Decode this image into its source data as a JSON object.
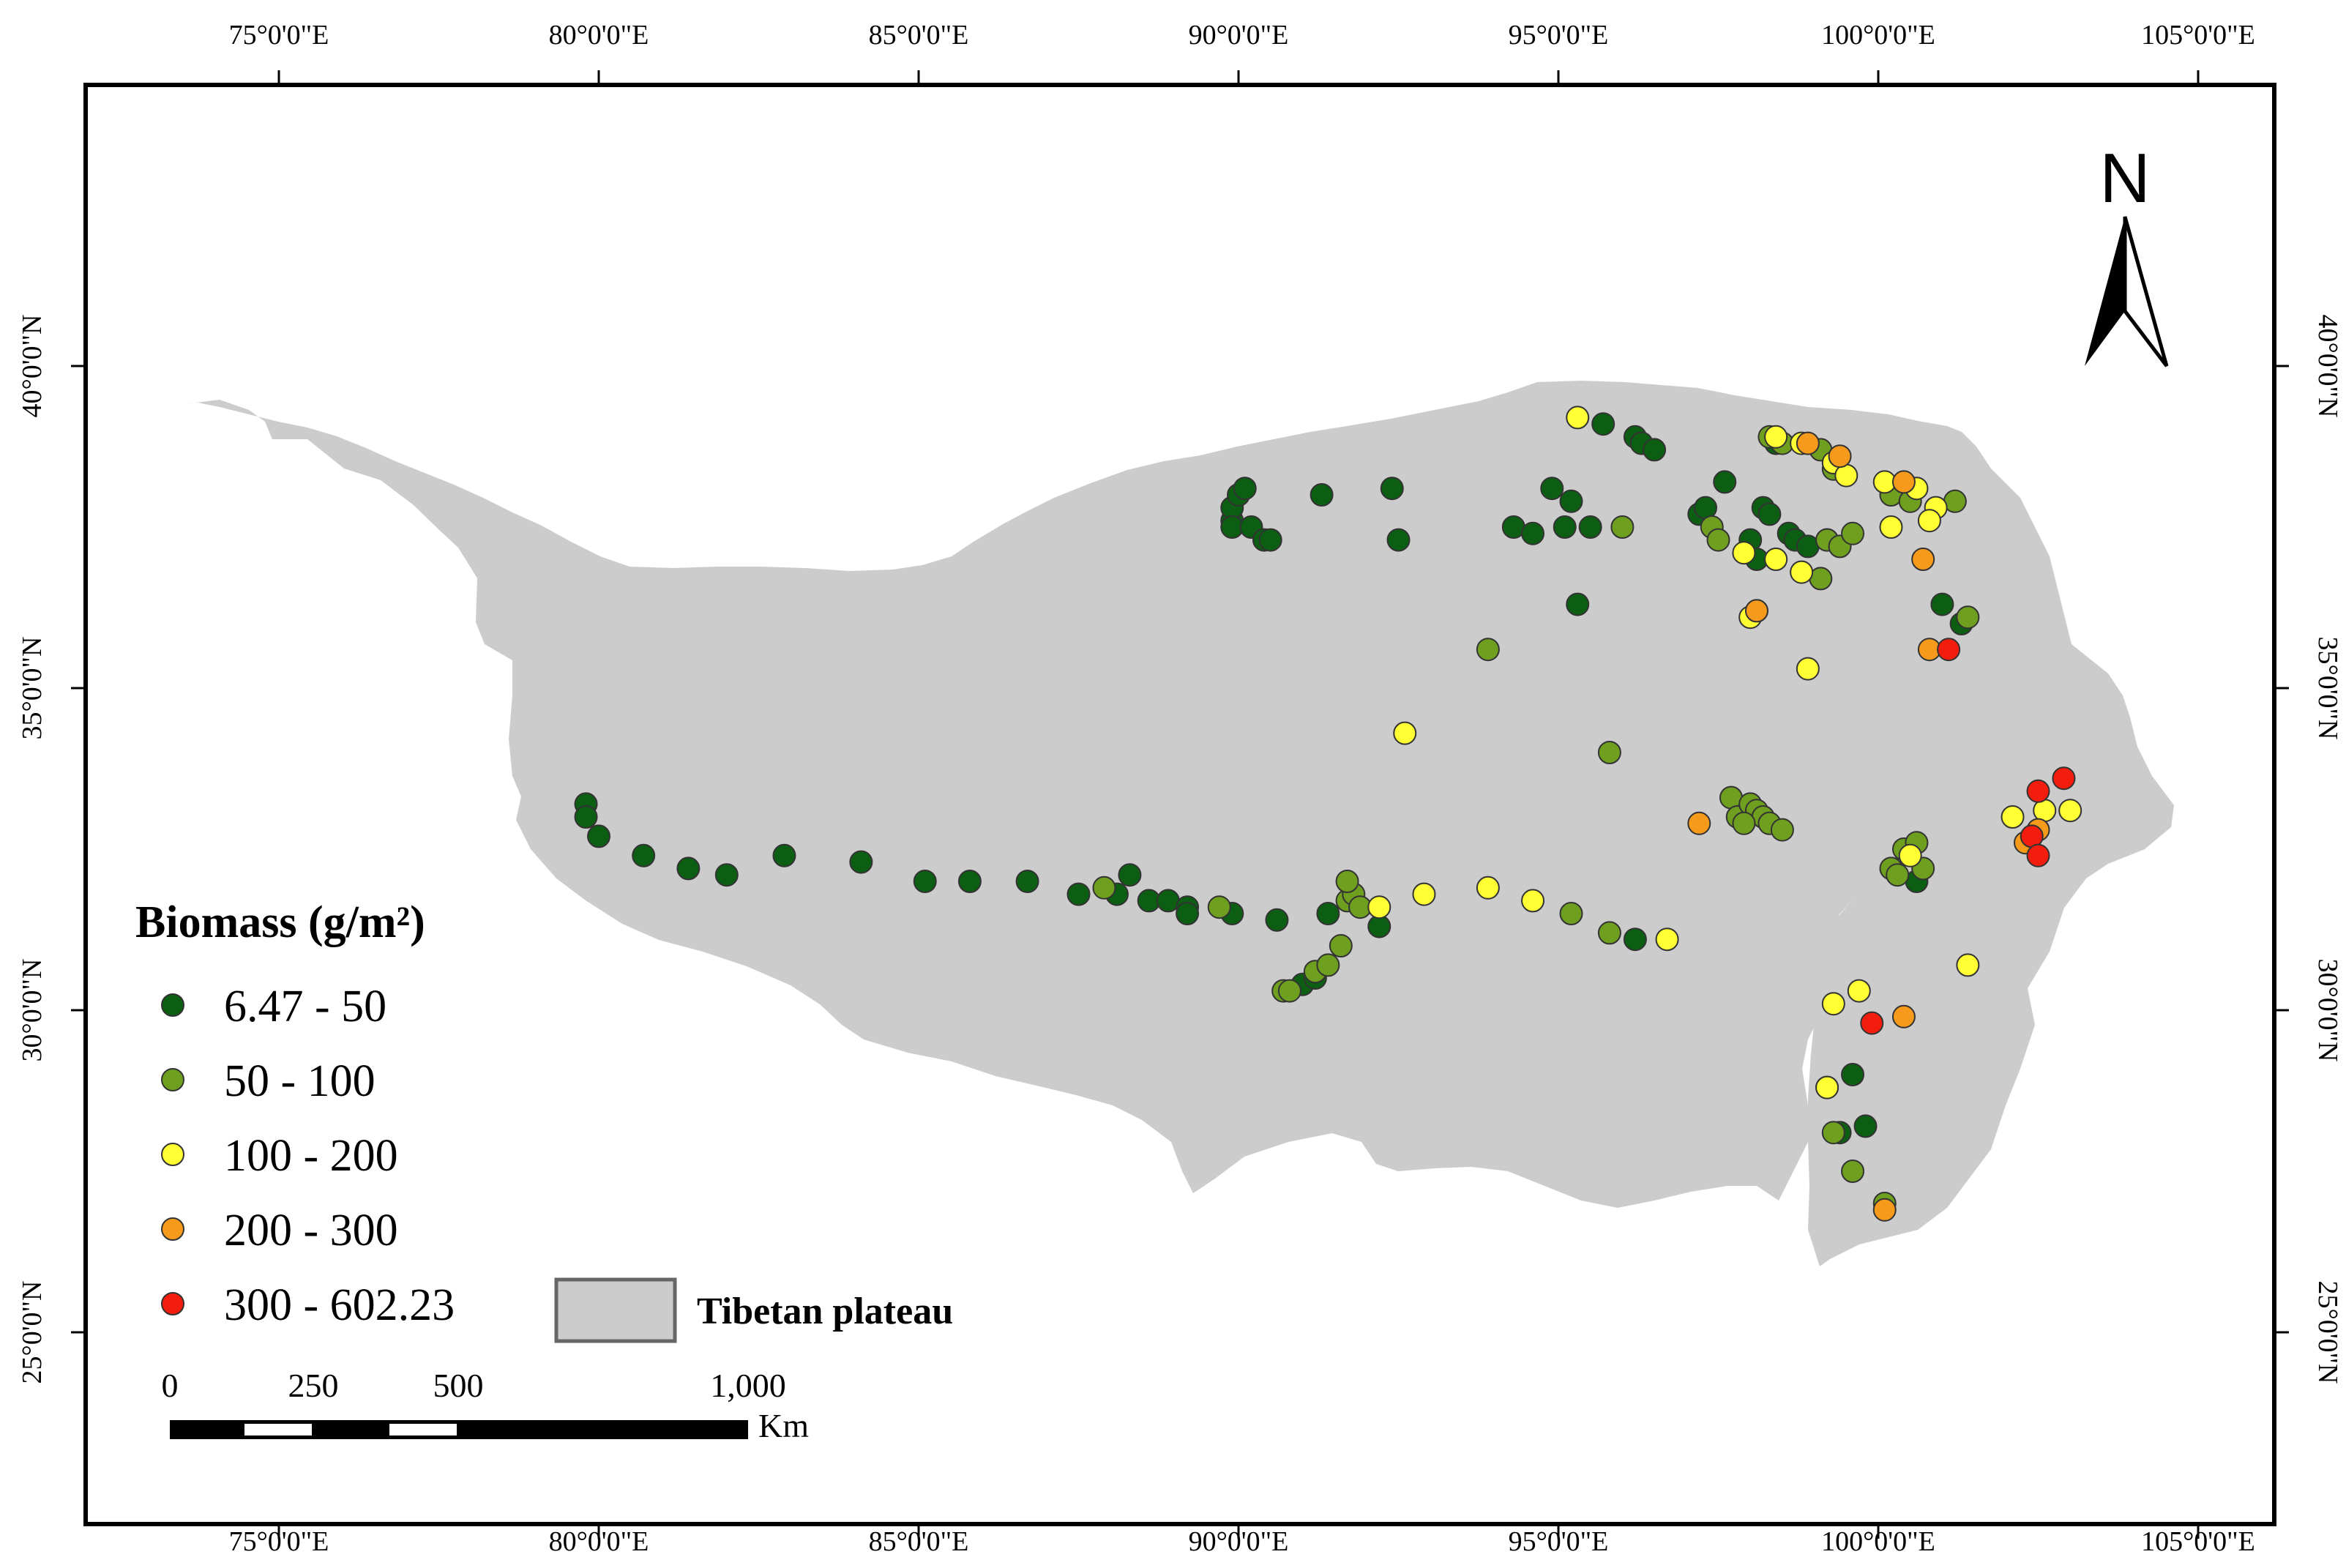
{
  "legend": {
    "title": "Biomass (g/m²)",
    "classes": [
      {
        "id": "c1",
        "label": "6.47 - 50",
        "color": "#0b5e12"
      },
      {
        "id": "c2",
        "label": "50 - 100",
        "color": "#6f9f1f"
      },
      {
        "id": "c3",
        "label": "100 - 200",
        "color": "#ffff33"
      },
      {
        "id": "c4",
        "label": "200 - 300",
        "color": "#f59a1b"
      },
      {
        "id": "c5",
        "label": "300 - 602.23",
        "color": "#f21d0c"
      }
    ],
    "plateau_label": "Tibetan plateau",
    "plateau_color": "#cccccc"
  },
  "north_arrow": {
    "label": "N"
  },
  "scale_bar": {
    "labels": [
      "0",
      "250",
      "500",
      "1,000"
    ],
    "unit": "Km"
  },
  "axes": {
    "lon_ticks": [
      {
        "value": 75,
        "label": "75°0'0\"E"
      },
      {
        "value": 80,
        "label": "80°0'0\"E"
      },
      {
        "value": 85,
        "label": "85°0'0\"E"
      },
      {
        "value": 90,
        "label": "90°0'0\"E"
      },
      {
        "value": 95,
        "label": "95°0'0\"E"
      },
      {
        "value": 100,
        "label": "100°0'0\"E"
      },
      {
        "value": 105,
        "label": "105°0'0\"E"
      }
    ],
    "lat_ticks": [
      {
        "value": 40,
        "label": "40°0'0\"N"
      },
      {
        "value": 35,
        "label": "35°0'0\"N"
      },
      {
        "value": 30,
        "label": "30°0'0\"N"
      },
      {
        "value": 25,
        "label": "25°0'0\"N"
      }
    ]
  },
  "sites": [
    [
      "c1",
      79.8,
      33.2
    ],
    [
      "c1",
      79.8,
      33.0
    ],
    [
      "c1",
      80.0,
      32.7
    ],
    [
      "c1",
      80.7,
      32.4
    ],
    [
      "c1",
      81.4,
      32.2
    ],
    [
      "c1",
      82.0,
      32.1
    ],
    [
      "c1",
      82.9,
      32.4
    ],
    [
      "c1",
      84.1,
      32.3
    ],
    [
      "c1",
      85.1,
      32.0
    ],
    [
      "c1",
      85.8,
      32.0
    ],
    [
      "c1",
      86.7,
      32.0
    ],
    [
      "c1",
      87.5,
      31.8
    ],
    [
      "c1",
      88.1,
      31.8
    ],
    [
      "c1",
      88.3,
      32.1
    ],
    [
      "c1",
      88.6,
      31.7
    ],
    [
      "c1",
      88.9,
      31.7
    ],
    [
      "c1",
      89.2,
      31.6
    ],
    [
      "c1",
      89.2,
      31.5
    ],
    [
      "c1",
      89.9,
      31.5
    ],
    [
      "c1",
      90.6,
      31.4
    ],
    [
      "c1",
      91.4,
      31.5
    ],
    [
      "c1",
      92.2,
      31.3
    ],
    [
      "c1",
      91.0,
      30.4
    ],
    [
      "c1",
      91.2,
      30.5
    ],
    [
      "c1",
      89.9,
      37.6
    ],
    [
      "c1",
      89.9,
      37.8
    ],
    [
      "c1",
      90.0,
      38.0
    ],
    [
      "c1",
      90.1,
      38.1
    ],
    [
      "c1",
      89.9,
      37.5
    ],
    [
      "c1",
      90.2,
      37.5
    ],
    [
      "c1",
      90.4,
      37.3
    ],
    [
      "c1",
      90.5,
      37.3
    ],
    [
      "c1",
      91.3,
      38.0
    ],
    [
      "c1",
      92.4,
      38.1
    ],
    [
      "c1",
      92.5,
      37.3
    ],
    [
      "c1",
      94.3,
      37.5
    ],
    [
      "c1",
      94.6,
      37.4
    ],
    [
      "c1",
      94.9,
      38.1
    ],
    [
      "c1",
      95.1,
      37.5
    ],
    [
      "c1",
      95.2,
      37.9
    ],
    [
      "c1",
      95.5,
      37.5
    ],
    [
      "c1",
      95.3,
      36.3
    ],
    [
      "c1",
      95.7,
      39.1
    ],
    [
      "c1",
      96.2,
      38.9
    ],
    [
      "c1",
      96.3,
      38.8
    ],
    [
      "c1",
      96.5,
      38.7
    ],
    [
      "c1",
      97.2,
      37.7
    ],
    [
      "c1",
      97.3,
      37.8
    ],
    [
      "c1",
      97.6,
      38.2
    ],
    [
      "c1",
      98.0,
      37.3
    ],
    [
      "c1",
      98.1,
      37.0
    ],
    [
      "c1",
      98.2,
      37.8
    ],
    [
      "c1",
      98.3,
      37.7
    ],
    [
      "c1",
      98.4,
      38.8
    ],
    [
      "c1",
      98.6,
      37.4
    ],
    [
      "c1",
      98.7,
      37.3
    ],
    [
      "c1",
      98.9,
      37.2
    ],
    [
      "c1",
      99.2,
      37.3
    ],
    [
      "c1",
      101.0,
      36.3
    ],
    [
      "c1",
      101.3,
      36.0
    ],
    [
      "c1",
      99.6,
      29.0
    ],
    [
      "c1",
      99.4,
      28.1
    ],
    [
      "c1",
      99.8,
      28.2
    ],
    [
      "c1",
      99.2,
      28.8
    ],
    [
      "c1",
      100.6,
      32.0
    ],
    [
      "c1",
      96.2,
      31.1
    ],
    [
      "c2",
      87.9,
      31.9
    ],
    [
      "c2",
      89.7,
      31.6
    ],
    [
      "c2",
      90.7,
      30.3
    ],
    [
      "c2",
      90.8,
      30.3
    ],
    [
      "c2",
      91.2,
      30.6
    ],
    [
      "c2",
      91.4,
      30.7
    ],
    [
      "c2",
      91.6,
      31.0
    ],
    [
      "c2",
      91.7,
      31.7
    ],
    [
      "c2",
      91.8,
      31.8
    ],
    [
      "c2",
      91.9,
      31.6
    ],
    [
      "c2",
      91.7,
      32.0
    ],
    [
      "c2",
      95.2,
      31.5
    ],
    [
      "c2",
      95.8,
      31.2
    ],
    [
      "c2",
      93.9,
      35.6
    ],
    [
      "c2",
      95.8,
      34.0
    ],
    [
      "c2",
      96.0,
      37.5
    ],
    [
      "c2",
      97.4,
      37.5
    ],
    [
      "c2",
      97.5,
      37.3
    ],
    [
      "c2",
      98.1,
      36.2
    ],
    [
      "c2",
      98.3,
      38.9
    ],
    [
      "c2",
      98.5,
      38.8
    ],
    [
      "c2",
      99.1,
      38.7
    ],
    [
      "c2",
      99.3,
      38.4
    ],
    [
      "c2",
      99.2,
      37.3
    ],
    [
      "c2",
      99.4,
      37.2
    ],
    [
      "c2",
      99.6,
      37.4
    ],
    [
      "c2",
      99.1,
      36.7
    ],
    [
      "c2",
      100.2,
      38.0
    ],
    [
      "c2",
      100.5,
      37.9
    ],
    [
      "c2",
      101.2,
      37.9
    ],
    [
      "c2",
      101.4,
      36.1
    ],
    [
      "c2",
      97.7,
      33.3
    ],
    [
      "c2",
      97.8,
      33.0
    ],
    [
      "c2",
      98.0,
      33.2
    ],
    [
      "c2",
      98.1,
      33.1
    ],
    [
      "c2",
      98.2,
      33.0
    ],
    [
      "c2",
      98.3,
      32.9
    ],
    [
      "c2",
      98.5,
      32.8
    ],
    [
      "c2",
      97.9,
      32.9
    ],
    [
      "c2",
      100.2,
      32.2
    ],
    [
      "c2",
      100.3,
      32.1
    ],
    [
      "c2",
      100.4,
      32.5
    ],
    [
      "c2",
      100.6,
      32.6
    ],
    [
      "c2",
      100.7,
      32.2
    ],
    [
      "c2",
      99.6,
      27.5
    ],
    [
      "c2",
      100.1,
      27.0
    ],
    [
      "c2",
      99.3,
      28.1
    ],
    [
      "c3",
      95.3,
      39.2
    ],
    [
      "c3",
      98.4,
      38.9
    ],
    [
      "c3",
      98.8,
      38.8
    ],
    [
      "c3",
      99.3,
      38.5
    ],
    [
      "c3",
      99.5,
      38.3
    ],
    [
      "c3",
      100.1,
      38.2
    ],
    [
      "c3",
      100.6,
      38.1
    ],
    [
      "c3",
      100.9,
      37.8
    ],
    [
      "c3",
      100.8,
      37.6
    ],
    [
      "c3",
      100.2,
      37.5
    ],
    [
      "c3",
      97.9,
      37.1
    ],
    [
      "c3",
      98.4,
      37.0
    ],
    [
      "c3",
      98.8,
      36.8
    ],
    [
      "c3",
      98.0,
      36.1
    ],
    [
      "c3",
      98.9,
      35.3
    ],
    [
      "c3",
      92.6,
      34.3
    ],
    [
      "c3",
      92.2,
      31.6
    ],
    [
      "c3",
      92.9,
      31.8
    ],
    [
      "c3",
      93.9,
      31.9
    ],
    [
      "c3",
      94.6,
      31.7
    ],
    [
      "c3",
      96.7,
      31.1
    ],
    [
      "c3",
      99.3,
      30.1
    ],
    [
      "c3",
      99.7,
      30.3
    ],
    [
      "c3",
      99.2,
      28.8
    ],
    [
      "c3",
      100.5,
      32.4
    ],
    [
      "c3",
      101.4,
      30.7
    ],
    [
      "c3",
      102.1,
      33.0
    ],
    [
      "c3",
      102.6,
      33.1
    ],
    [
      "c3",
      103.0,
      33.1
    ],
    [
      "c4",
      98.1,
      36.2
    ],
    [
      "c4",
      98.9,
      38.8
    ],
    [
      "c4",
      99.4,
      38.6
    ],
    [
      "c4",
      100.4,
      38.2
    ],
    [
      "c4",
      100.7,
      37.0
    ],
    [
      "c4",
      100.8,
      35.6
    ],
    [
      "c4",
      97.2,
      32.9
    ],
    [
      "c4",
      100.4,
      29.9
    ],
    [
      "c4",
      100.1,
      26.9
    ],
    [
      "c4",
      102.3,
      32.6
    ],
    [
      "c4",
      102.5,
      32.8
    ],
    [
      "c5",
      101.1,
      35.6
    ],
    [
      "c5",
      99.9,
      29.8
    ],
    [
      "c5",
      102.4,
      32.7
    ],
    [
      "c5",
      102.5,
      32.4
    ],
    [
      "c5",
      102.5,
      33.4
    ],
    [
      "c5",
      102.9,
      33.6
    ]
  ]
}
